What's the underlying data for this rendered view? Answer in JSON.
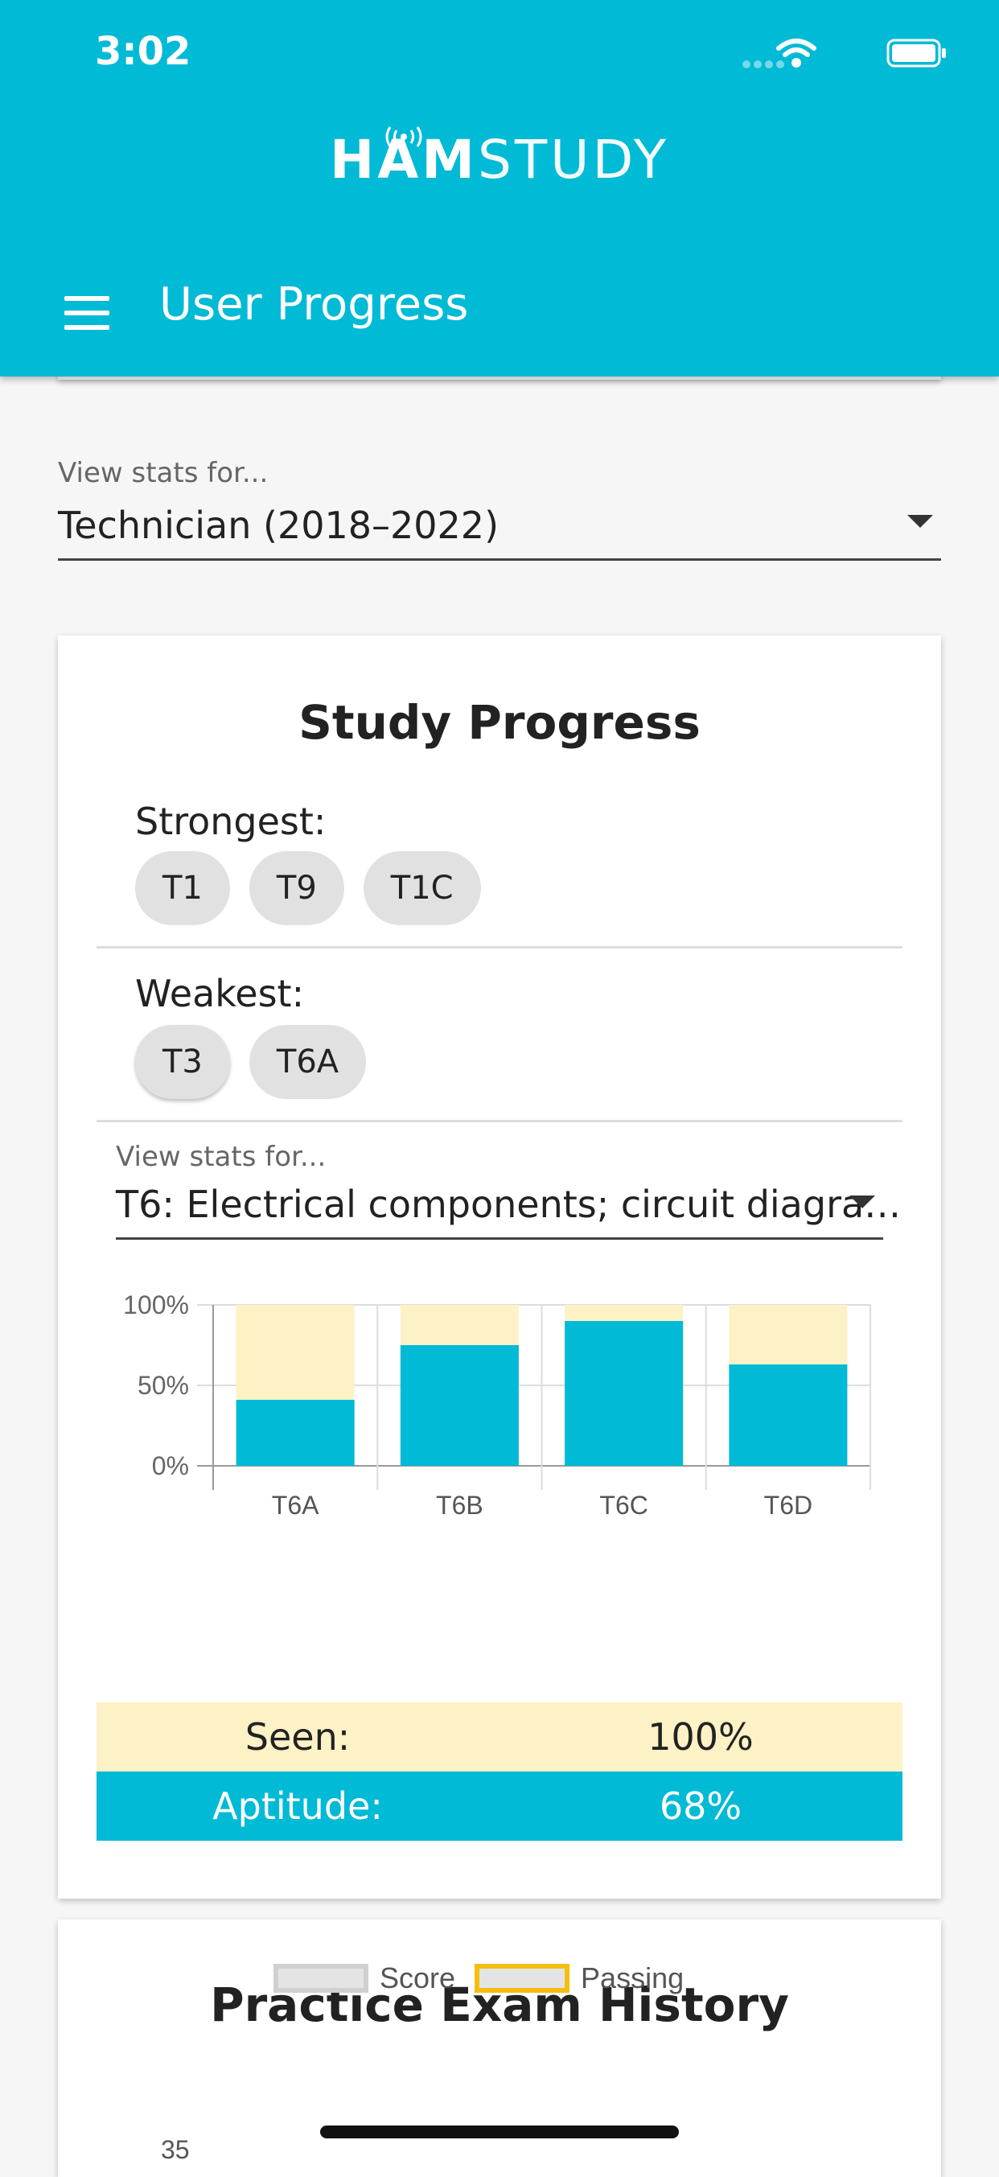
{
  "status_bar": {
    "time": "3:02"
  },
  "header": {
    "logo_bold": "HAM",
    "logo_light": "STUDY",
    "title": "User Progress"
  },
  "stats_select": {
    "label": "View stats for...",
    "value": "Technician (2018–2022)"
  },
  "study_progress": {
    "title": "Study Progress",
    "strongest_label": "Strongest:",
    "strongest": [
      "T1",
      "T9",
      "T1C"
    ],
    "weakest_label": "Weakest:",
    "weakest": [
      "T3",
      "T6A"
    ],
    "subselect": {
      "label": "View stats for...",
      "value": "T6: Electrical components; circuit diagra…"
    },
    "seen_label": "Seen:",
    "seen_value": "100%",
    "aptitude_label": "Aptitude:",
    "aptitude_value": "68%"
  },
  "chart_data": {
    "type": "bar",
    "categories": [
      "T6A",
      "T6B",
      "T6C",
      "T6D"
    ],
    "series": [
      {
        "values": [
          100,
          100,
          100,
          100
        ],
        "color": "#fdf1c6"
      },
      {
        "values": [
          41,
          75,
          90,
          63
        ],
        "color": "#00bad6"
      }
    ],
    "ylim": [
      0,
      100
    ],
    "yticks": [
      "0%",
      "50%",
      "100%"
    ],
    "grid": true
  },
  "practice_exam": {
    "title": "Practice Exam History",
    "legend_score": "Score",
    "legend_passing": "Passing",
    "first_ytick": "35"
  },
  "colors": {
    "accent": "#00bad6",
    "seen": "#fdf1c6",
    "passing_border": "#f5bd10"
  }
}
